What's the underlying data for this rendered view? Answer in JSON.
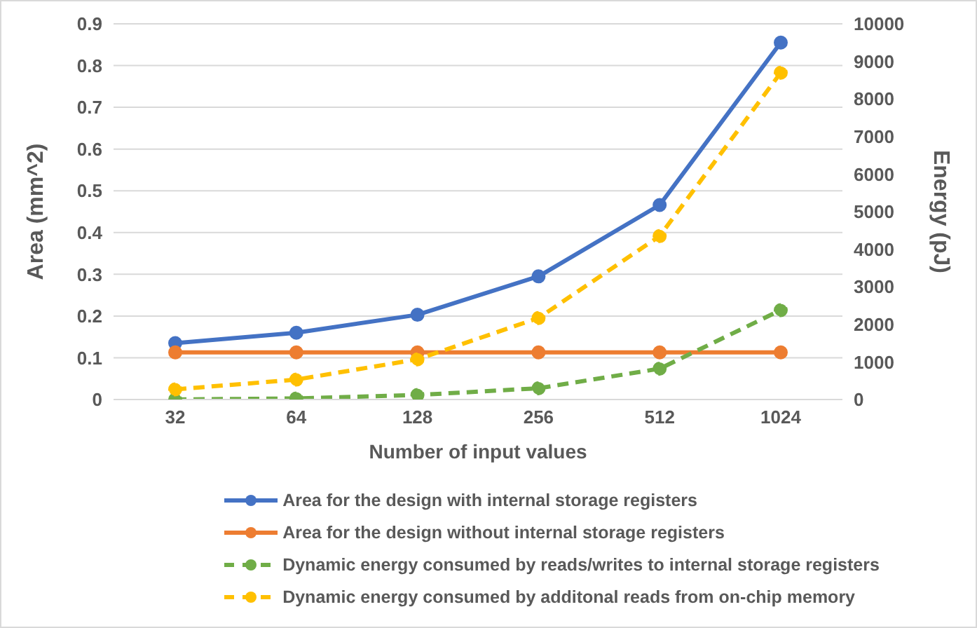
{
  "chart_data": {
    "type": "line",
    "xlabel": "Number of input values",
    "ylabel": "Area (mm^2)",
    "y2label": "Energy (pJ)",
    "categories": [
      "32",
      "64",
      "128",
      "256",
      "512",
      "1024"
    ],
    "series": [
      {
        "name": "Area for the design with internal storage registers",
        "color": "#4472c4",
        "values": [
          0.135,
          0.16,
          0.203,
          0.295,
          0.466,
          0.855
        ],
        "line_style": "solid"
      },
      {
        "name": "Area for the design without internal storage registers",
        "color": "#ed7d31",
        "values": [
          0.113,
          0.113,
          0.113,
          0.113,
          0.113,
          0.113
        ],
        "line_style": "solid"
      },
      {
        "name": "Dynamic energy consumed by reads/writes to internal storage registers",
        "color": "#70ad47",
        "values": [
          0,
          30,
          120,
          300,
          820,
          2380
        ],
        "axis": "y2",
        "line_style": "dashed"
      },
      {
        "name": "Dynamic energy consumed by additonal reads from on-chip memory",
        "color": "#ffc000",
        "values": [
          270,
          530,
          1070,
          2170,
          4350,
          8700
        ],
        "axis": "y2",
        "line_style": "dashed"
      }
    ],
    "ylim": [
      0,
      0.9
    ],
    "yticks": [
      0,
      0.1,
      0.2,
      0.3,
      0.4,
      0.5,
      0.6,
      0.7,
      0.8,
      0.9
    ],
    "y2lim": [
      0,
      10000
    ],
    "y2ticks": [
      0,
      1000,
      2000,
      3000,
      4000,
      5000,
      6000,
      7000,
      8000,
      9000,
      10000
    ],
    "grid": "y",
    "legend": "bottom",
    "marker": "circle"
  }
}
